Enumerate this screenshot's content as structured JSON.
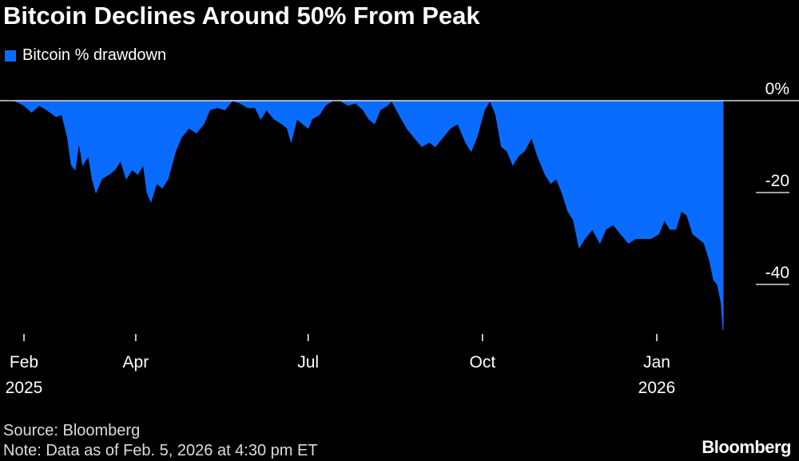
{
  "title": "Bitcoin Declines Around 50% From Peak",
  "legend": {
    "label": "Bitcoin % drawdown"
  },
  "colors": {
    "series": "#0a6cff",
    "background": "#000000",
    "text": "#ffffff"
  },
  "source": "Source: Bloomberg",
  "note": "Note: Data as of Feb. 5, 2026 at 4:30 pm ET",
  "brand": "Bloomberg",
  "chart_data": {
    "type": "area",
    "title": "Bitcoin Declines Around 50% From Peak",
    "xlabel": "",
    "ylabel": "",
    "ylim": [
      -50,
      0
    ],
    "yticks": [
      {
        "value": 0,
        "label": "0%"
      },
      {
        "value": -20,
        "label": "-20"
      },
      {
        "value": -40,
        "label": "-40"
      }
    ],
    "xrange": [
      "2025-01-27",
      "2026-02-05"
    ],
    "xticks": [
      {
        "date": "2025-02-01",
        "label": "Feb",
        "label2": "2025"
      },
      {
        "date": "2025-04-01",
        "label": "Apr",
        "label2": ""
      },
      {
        "date": "2025-07-01",
        "label": "Jul",
        "label2": ""
      },
      {
        "date": "2025-10-01",
        "label": "Oct",
        "label2": ""
      },
      {
        "date": "2026-01-01",
        "label": "Jan",
        "label2": "2026"
      }
    ],
    "grid": false,
    "legend_position": "top-left",
    "series": [
      {
        "name": "Bitcoin % drawdown",
        "points": [
          [
            "2025-01-27",
            0
          ],
          [
            "2025-02-01",
            -1
          ],
          [
            "2025-02-05",
            -2.5
          ],
          [
            "2025-02-09",
            -1
          ],
          [
            "2025-02-13",
            -2
          ],
          [
            "2025-02-18",
            -3.5
          ],
          [
            "2025-02-21",
            -3
          ],
          [
            "2025-02-24",
            -8
          ],
          [
            "2025-02-26",
            -14
          ],
          [
            "2025-02-28",
            -15
          ],
          [
            "2025-03-02",
            -9
          ],
          [
            "2025-03-04",
            -14
          ],
          [
            "2025-03-07",
            -12
          ],
          [
            "2025-03-09",
            -17
          ],
          [
            "2025-03-11",
            -20
          ],
          [
            "2025-03-14",
            -17
          ],
          [
            "2025-03-18",
            -16
          ],
          [
            "2025-03-21",
            -15
          ],
          [
            "2025-03-24",
            -13
          ],
          [
            "2025-03-27",
            -17
          ],
          [
            "2025-03-30",
            -15
          ],
          [
            "2025-04-02",
            -16
          ],
          [
            "2025-04-05",
            -14
          ],
          [
            "2025-04-07",
            -20
          ],
          [
            "2025-04-09",
            -22
          ],
          [
            "2025-04-12",
            -18
          ],
          [
            "2025-04-15",
            -19
          ],
          [
            "2025-04-18",
            -17
          ],
          [
            "2025-04-22",
            -11
          ],
          [
            "2025-04-25",
            -8
          ],
          [
            "2025-04-29",
            -6
          ],
          [
            "2025-05-03",
            -7
          ],
          [
            "2025-05-07",
            -5
          ],
          [
            "2025-05-10",
            -2
          ],
          [
            "2025-05-14",
            -1.5
          ],
          [
            "2025-05-18",
            -2
          ],
          [
            "2025-05-22",
            0
          ],
          [
            "2025-05-26",
            -0.5
          ],
          [
            "2025-05-30",
            -1.5
          ],
          [
            "2025-06-03",
            -1.5
          ],
          [
            "2025-06-06",
            -4
          ],
          [
            "2025-06-09",
            -2
          ],
          [
            "2025-06-13",
            -4
          ],
          [
            "2025-06-17",
            -5
          ],
          [
            "2025-06-20",
            -6
          ],
          [
            "2025-06-22",
            -9
          ],
          [
            "2025-06-25",
            -4
          ],
          [
            "2025-06-28",
            -5
          ],
          [
            "2025-07-01",
            -6
          ],
          [
            "2025-07-03",
            -4
          ],
          [
            "2025-07-07",
            -3
          ],
          [
            "2025-07-10",
            -1
          ],
          [
            "2025-07-14",
            0
          ],
          [
            "2025-07-18",
            0
          ],
          [
            "2025-07-22",
            -1
          ],
          [
            "2025-07-26",
            -0.5
          ],
          [
            "2025-07-30",
            -2
          ],
          [
            "2025-08-02",
            -4
          ],
          [
            "2025-08-05",
            -5
          ],
          [
            "2025-08-08",
            -2
          ],
          [
            "2025-08-12",
            -1
          ],
          [
            "2025-08-14",
            0
          ],
          [
            "2025-08-18",
            -3
          ],
          [
            "2025-08-22",
            -6
          ],
          [
            "2025-08-26",
            -8
          ],
          [
            "2025-08-30",
            -10
          ],
          [
            "2025-09-03",
            -9
          ],
          [
            "2025-09-06",
            -10
          ],
          [
            "2025-09-10",
            -8
          ],
          [
            "2025-09-14",
            -6
          ],
          [
            "2025-09-18",
            -5
          ],
          [
            "2025-09-22",
            -9
          ],
          [
            "2025-09-25",
            -11
          ],
          [
            "2025-09-28",
            -8
          ],
          [
            "2025-10-02",
            -2
          ],
          [
            "2025-10-05",
            0
          ],
          [
            "2025-10-08",
            -3
          ],
          [
            "2025-10-11",
            -10
          ],
          [
            "2025-10-14",
            -11
          ],
          [
            "2025-10-17",
            -14
          ],
          [
            "2025-10-20",
            -12
          ],
          [
            "2025-10-23",
            -11
          ],
          [
            "2025-10-27",
            -8
          ],
          [
            "2025-10-30",
            -12
          ],
          [
            "2025-11-03",
            -16
          ],
          [
            "2025-11-06",
            -18
          ],
          [
            "2025-11-09",
            -17
          ],
          [
            "2025-11-12",
            -20
          ],
          [
            "2025-11-15",
            -24
          ],
          [
            "2025-11-18",
            -26
          ],
          [
            "2025-11-21",
            -32
          ],
          [
            "2025-11-24",
            -30
          ],
          [
            "2025-11-28",
            -28
          ],
          [
            "2025-12-02",
            -31
          ],
          [
            "2025-12-05",
            -28
          ],
          [
            "2025-12-09",
            -27
          ],
          [
            "2025-12-13",
            -29
          ],
          [
            "2025-12-17",
            -31
          ],
          [
            "2025-12-21",
            -30
          ],
          [
            "2025-12-25",
            -30
          ],
          [
            "2025-12-29",
            -30
          ],
          [
            "2026-01-02",
            -29
          ],
          [
            "2026-01-05",
            -26
          ],
          [
            "2026-01-08",
            -28
          ],
          [
            "2026-01-11",
            -28
          ],
          [
            "2026-01-14",
            -24
          ],
          [
            "2026-01-17",
            -25
          ],
          [
            "2026-01-20",
            -29
          ],
          [
            "2026-01-23",
            -30
          ],
          [
            "2026-01-26",
            -31
          ],
          [
            "2026-01-29",
            -35
          ],
          [
            "2026-01-31",
            -39
          ],
          [
            "2026-02-02",
            -40
          ],
          [
            "2026-02-04",
            -44
          ],
          [
            "2026-02-05",
            -50
          ]
        ]
      }
    ]
  }
}
